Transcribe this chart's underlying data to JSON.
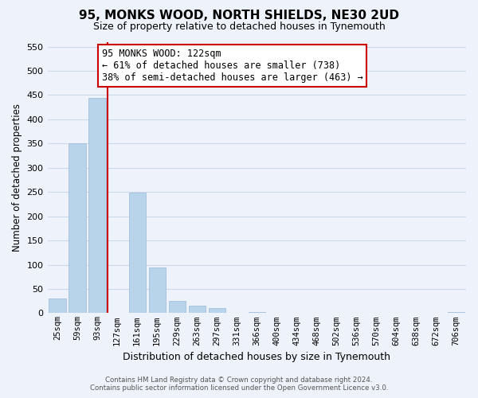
{
  "title": "95, MONKS WOOD, NORTH SHIELDS, NE30 2UD",
  "subtitle": "Size of property relative to detached houses in Tynemouth",
  "xlabel": "Distribution of detached houses by size in Tynemouth",
  "ylabel": "Number of detached properties",
  "bar_labels": [
    "25sqm",
    "59sqm",
    "93sqm",
    "127sqm",
    "161sqm",
    "195sqm",
    "229sqm",
    "263sqm",
    "297sqm",
    "331sqm",
    "366sqm",
    "400sqm",
    "434sqm",
    "468sqm",
    "502sqm",
    "536sqm",
    "570sqm",
    "604sqm",
    "638sqm",
    "672sqm",
    "706sqm"
  ],
  "bar_values": [
    30,
    350,
    445,
    0,
    248,
    94,
    26,
    15,
    10,
    0,
    3,
    0,
    0,
    0,
    0,
    0,
    0,
    0,
    0,
    0,
    3
  ],
  "bar_color": "#b8d4ea",
  "bar_edge_color": "#9ab8d8",
  "vline_x_index": 3,
  "vline_color": "#cc0000",
  "annotation_text": "95 MONKS WOOD: 122sqm\n← 61% of detached houses are smaller (738)\n38% of semi-detached houses are larger (463) →",
  "annotation_box_color": "#ffffff",
  "annotation_box_edge": "#cc0000",
  "ylim": [
    0,
    560
  ],
  "yticks": [
    0,
    50,
    100,
    150,
    200,
    250,
    300,
    350,
    400,
    450,
    500,
    550
  ],
  "footer_line1": "Contains HM Land Registry data © Crown copyright and database right 2024.",
  "footer_line2": "Contains public sector information licensed under the Open Government Licence v3.0.",
  "grid_color": "#ccd8ec",
  "background_color": "#eef2fa",
  "title_fontsize": 11,
  "subtitle_fontsize": 9,
  "ylabel_fontsize": 8.5,
  "xlabel_fontsize": 9
}
